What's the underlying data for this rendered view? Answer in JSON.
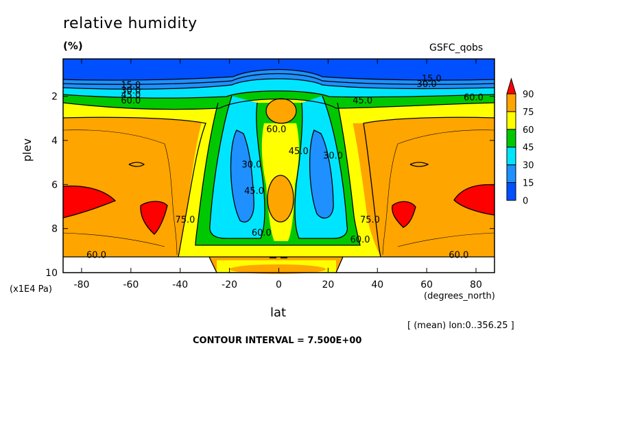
{
  "chart_data": {
    "type": "heatmap",
    "title": "relative humidity",
    "units": "(%)",
    "dataset": "GSFC_qobs",
    "xlabel": "lat",
    "x_unit": "(degrees_north)",
    "ylabel": "plev",
    "y_unit": "(x1E4 Pa)",
    "xlim": [
      -87.5,
      87.5
    ],
    "ylim": [
      10,
      0.3
    ],
    "x_ticks": [
      -80,
      -60,
      -40,
      -20,
      0,
      20,
      40,
      60,
      80
    ],
    "y_ticks": [
      2,
      4,
      6,
      8,
      10
    ],
    "note": "[ (mean) lon:0..356.25 ]",
    "contour_interval_label": "CONTOUR INTERVAL = 7.500E+00",
    "colorbar": {
      "levels": [
        0,
        15,
        30,
        45,
        60,
        75,
        90
      ],
      "colors": [
        "#0050ff",
        "#1e90ff",
        "#00e5ff",
        "#00c800",
        "#ffff00",
        "#ffa500",
        "#ff0000"
      ]
    },
    "contour_labels": [
      {
        "text": "15.0",
        "lat": -60,
        "p": 1.5
      },
      {
        "text": "30.0",
        "lat": -60,
        "p": 1.75
      },
      {
        "text": "45.0",
        "lat": -60,
        "p": 1.95
      },
      {
        "text": "60.0",
        "lat": -60,
        "p": 2.2
      },
      {
        "text": "15.0",
        "lat": 62,
        "p": 1.2
      },
      {
        "text": "30.0",
        "lat": 60,
        "p": 1.45
      },
      {
        "text": "45.0",
        "lat": 34,
        "p": 2.2
      },
      {
        "text": "60.0",
        "lat": 79,
        "p": 2.05
      },
      {
        "text": "60.0",
        "lat": -1,
        "p": 3.5
      },
      {
        "text": "45.0",
        "lat": 8,
        "p": 4.5
      },
      {
        "text": "30.0",
        "lat": -11,
        "p": 5.1
      },
      {
        "text": "30.0",
        "lat": 22,
        "p": 4.7
      },
      {
        "text": "45.0",
        "lat": -10,
        "p": 6.3
      },
      {
        "text": "60.0",
        "lat": -7,
        "p": 8.2
      },
      {
        "text": "75.0",
        "lat": -38,
        "p": 7.6
      },
      {
        "text": "75.0",
        "lat": 37,
        "p": 7.6
      },
      {
        "text": "60.0",
        "lat": 33,
        "p": 8.5
      },
      {
        "text": "60.0",
        "lat": -74,
        "p": 9.2
      },
      {
        "text": "60.0",
        "lat": 73,
        "p": 9.2
      }
    ]
  }
}
